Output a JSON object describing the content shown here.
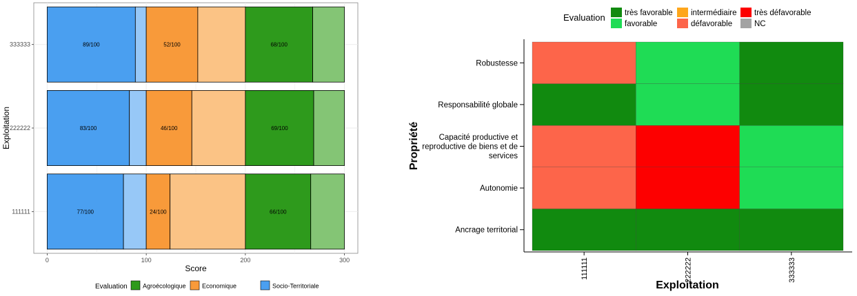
{
  "chart_data": [
    {
      "type": "bar",
      "orientation": "horizontal",
      "stacked": true,
      "categories": [
        "111111",
        "222222",
        "333333"
      ],
      "xlabel": "Score",
      "ylabel": "Exploitation",
      "xlim": [
        0,
        300
      ],
      "xticks": [
        0,
        100,
        200,
        300
      ],
      "grid": true,
      "legend": {
        "title": "Evaluation",
        "position": "bottom",
        "entries": [
          {
            "name": "Agroécologique",
            "color": "#2e9a1c"
          },
          {
            "name": "Economique",
            "color": "#f89a3a"
          },
          {
            "name": "Socio-Territoriale",
            "color": "#4a9ff0"
          }
        ]
      },
      "series": [
        {
          "name": "Socio-Territoriale",
          "color": "#4a9ff0",
          "light_color": "#97c8f7",
          "offset": 0,
          "values": [
            77,
            83,
            89
          ],
          "labels": [
            "77/100",
            "83/100",
            "89/100"
          ]
        },
        {
          "name": "Economique",
          "color": "#f89a3a",
          "light_color": "#fbc385",
          "offset": 100,
          "values": [
            24,
            46,
            52
          ],
          "labels": [
            "24/100",
            "46/100",
            "52/100"
          ]
        },
        {
          "name": "Agroécologique",
          "color": "#2e9a1c",
          "light_color": "#84c575",
          "offset": 200,
          "values": [
            66,
            69,
            68
          ],
          "labels": [
            "66/100",
            "69/100",
            "68/100"
          ]
        }
      ]
    },
    {
      "type": "heatmap",
      "xlabel": "Exploitation",
      "ylabel": "Propriété",
      "x": [
        "111111",
        "222222",
        "333333"
      ],
      "y": [
        "Ancrage territorial",
        "Autonomie",
        "Capacité productive et reproductive de biens et de services",
        "Responsabilité globale",
        "Robustesse"
      ],
      "y_display": [
        [
          "Ancrage territorial"
        ],
        [
          "Autonomie"
        ],
        [
          "Capacité productive et",
          "reproductive de biens et de",
          "services"
        ],
        [
          "Responsabilité globale"
        ],
        [
          "Robustesse"
        ]
      ],
      "values": [
        [
          "très favorable",
          "très favorable",
          "très favorable"
        ],
        [
          "défavorable",
          "très défavorable",
          "favorable"
        ],
        [
          "défavorable",
          "très défavorable",
          "favorable"
        ],
        [
          "très favorable",
          "favorable",
          "très favorable"
        ],
        [
          "défavorable",
          "favorable",
          "très favorable"
        ]
      ],
      "legend": {
        "title": "Evaluation",
        "position": "top",
        "entries": [
          {
            "name": "très favorable",
            "color": "#118a0f"
          },
          {
            "name": "favorable",
            "color": "#1fdc55"
          },
          {
            "name": "intermédiaire",
            "color": "#fea61c"
          },
          {
            "name": "défavorable",
            "color": "#fd654a"
          },
          {
            "name": "très défavorable",
            "color": "#fd0000"
          },
          {
            "name": "NC",
            "color": "#a3a3a3"
          }
        ]
      }
    }
  ]
}
